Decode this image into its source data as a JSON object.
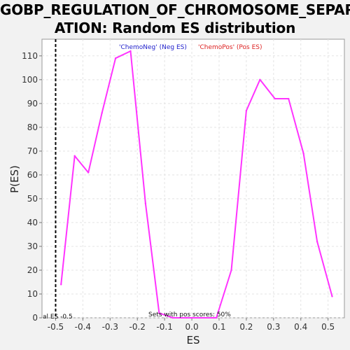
{
  "chart_data": {
    "type": "line",
    "title_line1": "GOBP_REGULATION_OF_CHROMOSOME_SEPAR",
    "title_line2": "ATION: Random ES distribution",
    "xlabel": "ES",
    "ylabel": "P(ES)",
    "xlim": [
      -0.55,
      0.56
    ],
    "ylim": [
      0,
      117
    ],
    "xticks": [
      -0.5,
      -0.4,
      -0.3,
      -0.2,
      -0.1,
      0.0,
      0.1,
      0.2,
      0.3,
      0.4,
      0.5
    ],
    "xtick_labels": [
      "-0.5",
      "-0.4",
      "-0.3",
      "-0.2",
      "-0.1",
      "0.0",
      "0.1",
      "0.2",
      "0.3",
      "0.4",
      "0.5"
    ],
    "yticks": [
      0,
      10,
      20,
      30,
      40,
      50,
      60,
      70,
      80,
      90,
      100,
      110
    ],
    "grid": true,
    "series": [
      {
        "color": "#ff33ff",
        "x": [
          -0.48,
          -0.43,
          -0.38,
          -0.33,
          -0.28,
          -0.225,
          -0.17,
          -0.12,
          -0.07,
          -0.02,
          0.03,
          0.08,
          0.09,
          0.145,
          0.2,
          0.25,
          0.305,
          0.355,
          0.41,
          0.46,
          0.515
        ],
        "y": [
          14,
          68,
          61,
          86,
          109,
          112,
          48,
          2,
          0,
          0,
          0,
          0,
          0,
          20,
          87,
          100,
          92,
          92,
          69,
          32,
          9
        ]
      }
    ],
    "vline": {
      "x": -0.5,
      "style": "dashed",
      "color": "#000000"
    },
    "legend": [
      {
        "label": "'ChemoNeg' (Neg ES)",
        "color": "#2222cc"
      },
      {
        "label": "'ChemoPos' (Pos ES)",
        "color": "#dd2222"
      }
    ],
    "annotations": {
      "pos_scores": "Sets with pos scores: 50%",
      "actual_es": "al ES -0.5"
    }
  }
}
